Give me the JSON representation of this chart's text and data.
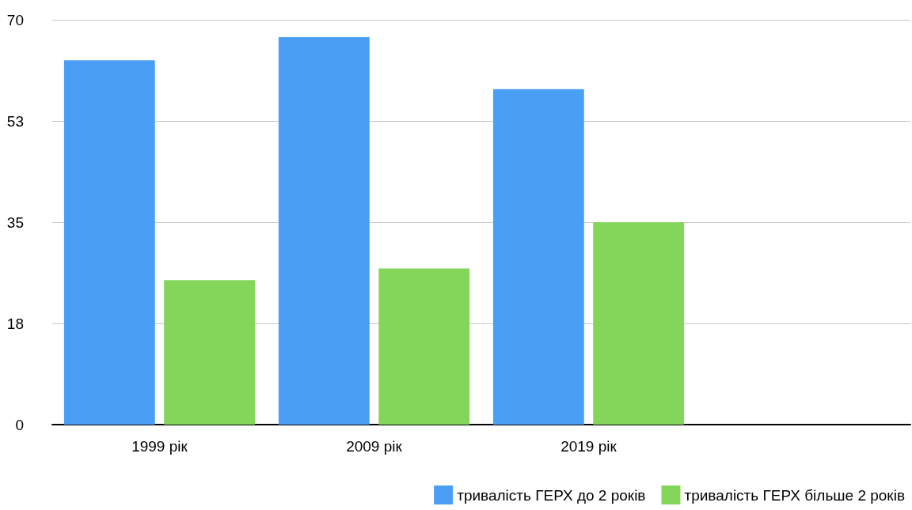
{
  "chart_data": {
    "type": "bar",
    "categories": [
      "1999 рік",
      "2009 рік",
      "2019 рік",
      null
    ],
    "series": [
      {
        "name": "тривалість ГЕРХ до 2 років",
        "color": "#4a9ff5",
        "values": [
          63,
          67,
          58,
          null
        ]
      },
      {
        "name": "тривалість ГЕРХ більше 2 років",
        "color": "#84d65a",
        "values": [
          25,
          27,
          35,
          null
        ]
      }
    ],
    "ylim": [
      0,
      70
    ],
    "yticks": [
      0,
      {
        "value": 17.5,
        "label": "18"
      },
      35,
      {
        "value": 52.5,
        "label": "53"
      },
      70
    ],
    "grid": "y",
    "legend": "bottom right"
  }
}
